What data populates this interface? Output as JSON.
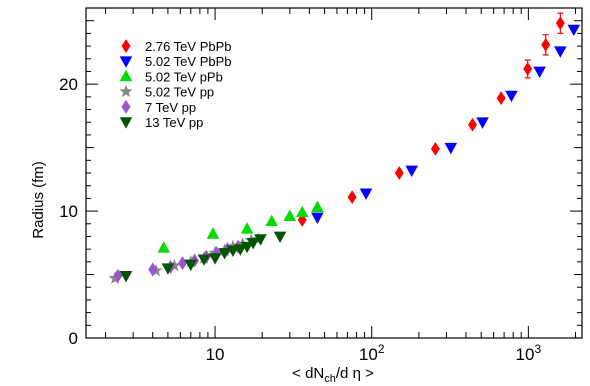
{
  "chart_data": {
    "type": "scatter",
    "xscale": "log",
    "xlim": [
      1.5,
      2200
    ],
    "ylim": [
      0,
      26
    ],
    "ylabel": "Radius (fm)",
    "xlabel": {
      "prefix": "< dN",
      "sub": "ch",
      "suffix": "/d η >"
    },
    "xticks": [
      {
        "base": "10",
        "exp": ""
      },
      {
        "base": "10",
        "exp": "2"
      },
      {
        "base": "10",
        "exp": "3"
      }
    ],
    "yticks": [
      "0",
      "10",
      "20"
    ],
    "grid": false,
    "legend_position": "top-left",
    "series": [
      {
        "name": "2.76 TeV PbPb",
        "marker": "diamond",
        "color": "#ff0000",
        "points": [
          {
            "x": 36,
            "y": 9.3
          },
          {
            "x": 75,
            "y": 11.1
          },
          {
            "x": 150,
            "y": 13.0
          },
          {
            "x": 255,
            "y": 14.9
          },
          {
            "x": 440,
            "y": 16.8
          },
          {
            "x": 670,
            "y": 18.9
          },
          {
            "x": 990,
            "y": 21.2,
            "err": 0.7
          },
          {
            "x": 1290,
            "y": 23.1,
            "err": 0.8
          },
          {
            "x": 1600,
            "y": 24.8,
            "err": 0.8
          }
        ]
      },
      {
        "name": "5.02 TeV PbPb",
        "marker": "triangle-down",
        "color": "#0000ff",
        "points": [
          {
            "x": 45,
            "y": 9.5
          },
          {
            "x": 92,
            "y": 11.4
          },
          {
            "x": 180,
            "y": 13.2
          },
          {
            "x": 320,
            "y": 15.0
          },
          {
            "x": 510,
            "y": 17.0
          },
          {
            "x": 780,
            "y": 19.1
          },
          {
            "x": 1180,
            "y": 21.0
          },
          {
            "x": 1600,
            "y": 22.6
          },
          {
            "x": 1950,
            "y": 24.3
          }
        ]
      },
      {
        "name": "5.02 TeV pPb",
        "marker": "triangle-up",
        "color": "#00dd00",
        "points": [
          {
            "x": 4.7,
            "y": 7.1
          },
          {
            "x": 9.7,
            "y": 8.2
          },
          {
            "x": 16,
            "y": 8.6
          },
          {
            "x": 23,
            "y": 9.2
          },
          {
            "x": 30,
            "y": 9.6
          },
          {
            "x": 36,
            "y": 9.9
          },
          {
            "x": 45,
            "y": 10.3
          }
        ]
      },
      {
        "name": "5.02 TeV pp",
        "marker": "star",
        "color": "#888888",
        "points": [
          {
            "x": 2.3,
            "y": 4.7
          },
          {
            "x": 4.2,
            "y": 5.3
          },
          {
            "x": 5.5,
            "y": 5.7
          },
          {
            "x": 7.0,
            "y": 6.0
          },
          {
            "x": 8.5,
            "y": 6.3
          },
          {
            "x": 10.0,
            "y": 6.7
          },
          {
            "x": 11.5,
            "y": 6.9
          },
          {
            "x": 13.0,
            "y": 7.2
          },
          {
            "x": 15.0,
            "y": 7.4
          },
          {
            "x": 17.0,
            "y": 7.7
          },
          {
            "x": 19.0,
            "y": 7.8
          }
        ]
      },
      {
        "name": "7 TeV pp",
        "marker": "diamond",
        "color": "#9955cc",
        "points": [
          {
            "x": 2.4,
            "y": 4.9
          },
          {
            "x": 4.0,
            "y": 5.4
          },
          {
            "x": 5.2,
            "y": 5.6
          },
          {
            "x": 6.2,
            "y": 5.9
          },
          {
            "x": 7.4,
            "y": 6.1
          },
          {
            "x": 8.8,
            "y": 6.4
          },
          {
            "x": 10.2,
            "y": 6.7
          },
          {
            "x": 12.0,
            "y": 7.0
          },
          {
            "x": 14.0,
            "y": 7.2
          }
        ]
      },
      {
        "name": "13 TeV pp",
        "marker": "triangle-down",
        "color": "#005500",
        "points": [
          {
            "x": 2.7,
            "y": 4.9
          },
          {
            "x": 5.0,
            "y": 5.5
          },
          {
            "x": 7.0,
            "y": 5.8
          },
          {
            "x": 8.5,
            "y": 6.2
          },
          {
            "x": 10.0,
            "y": 6.3
          },
          {
            "x": 11.5,
            "y": 6.7
          },
          {
            "x": 13.0,
            "y": 6.9
          },
          {
            "x": 14.5,
            "y": 7.0
          },
          {
            "x": 16.0,
            "y": 7.2
          },
          {
            "x": 17.5,
            "y": 7.5
          },
          {
            "x": 19.5,
            "y": 7.8
          },
          {
            "x": 26.0,
            "y": 8.0
          }
        ]
      }
    ]
  }
}
